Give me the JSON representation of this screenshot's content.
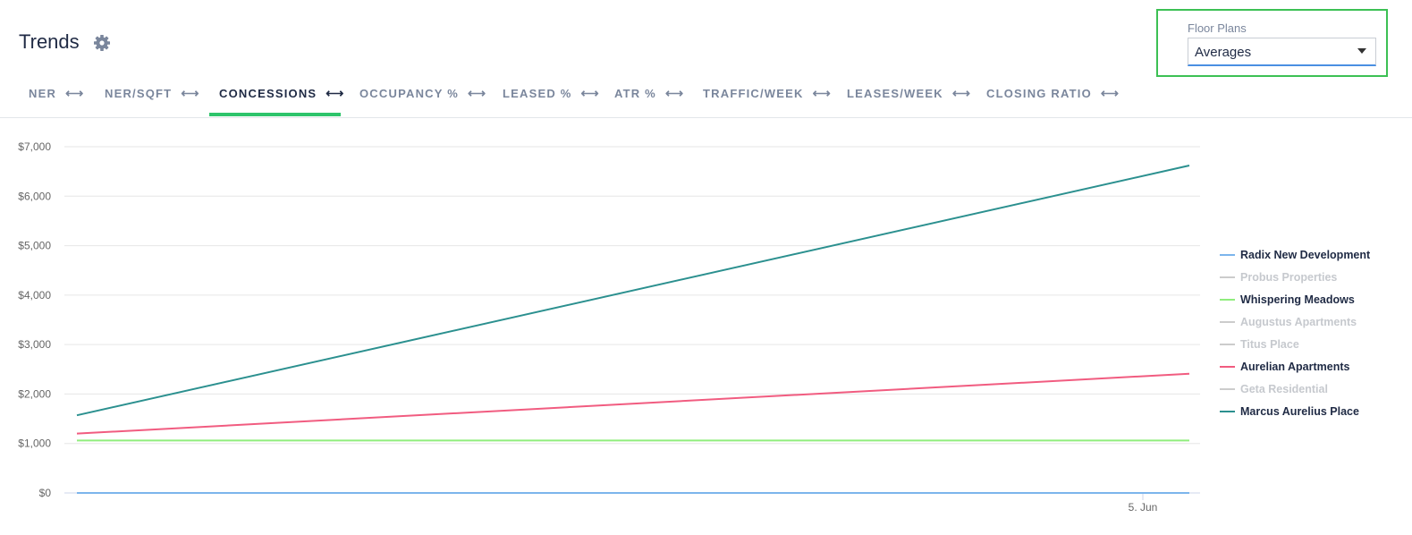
{
  "header": {
    "title": "Trends",
    "settings_icon": "gear-icon"
  },
  "floor_plans": {
    "label": "Floor Plans",
    "selected": "Averages",
    "border_color": "#3cc054"
  },
  "tabs": [
    {
      "label": "NER",
      "active": false
    },
    {
      "label": "NER/SQFT",
      "active": false
    },
    {
      "label": "CONCESSIONS",
      "active": true
    },
    {
      "label": "OCCUPANCY %",
      "active": false
    },
    {
      "label": "LEASED %",
      "active": false
    },
    {
      "label": "ATR %",
      "active": false
    },
    {
      "label": "TRAFFIC/WEEK",
      "active": false
    },
    {
      "label": "LEASES/WEEK",
      "active": false
    },
    {
      "label": "CLOSING RATIO",
      "active": false
    }
  ],
  "tab_arrow": "⟷",
  "accent_color": "#2ec46b",
  "chart_data": {
    "type": "line",
    "title": "",
    "xlabel": "",
    "ylabel": "",
    "ylim": [
      0,
      7000
    ],
    "yticks": [
      "$0",
      "$1,000",
      "$2,000",
      "$3,000",
      "$4,000",
      "$5,000",
      "$6,000",
      "$7,000"
    ],
    "xticks": [
      "5. Jun"
    ],
    "grid": true,
    "legend_position": "right",
    "series": [
      {
        "name": "Radix New Development",
        "color": "#7cb5ec",
        "visible": true,
        "values": [
          0,
          0
        ]
      },
      {
        "name": "Probus Properties",
        "color": "#c6c9ce",
        "visible": false,
        "values": []
      },
      {
        "name": "Whispering Meadows",
        "color": "#90ed7d",
        "visible": true,
        "values": [
          1060,
          1060
        ]
      },
      {
        "name": "Augustus Apartments",
        "color": "#c6c9ce",
        "visible": false,
        "values": []
      },
      {
        "name": "Titus Place",
        "color": "#c6c9ce",
        "visible": false,
        "values": []
      },
      {
        "name": "Aurelian Apartments",
        "color": "#f15c80",
        "visible": true,
        "values": [
          1200,
          2410
        ]
      },
      {
        "name": "Geta Residential",
        "color": "#c6c9ce",
        "visible": false,
        "values": []
      },
      {
        "name": "Marcus Aurelius Place",
        "color": "#2b908f",
        "visible": true,
        "values": [
          1570,
          6620
        ]
      }
    ]
  }
}
